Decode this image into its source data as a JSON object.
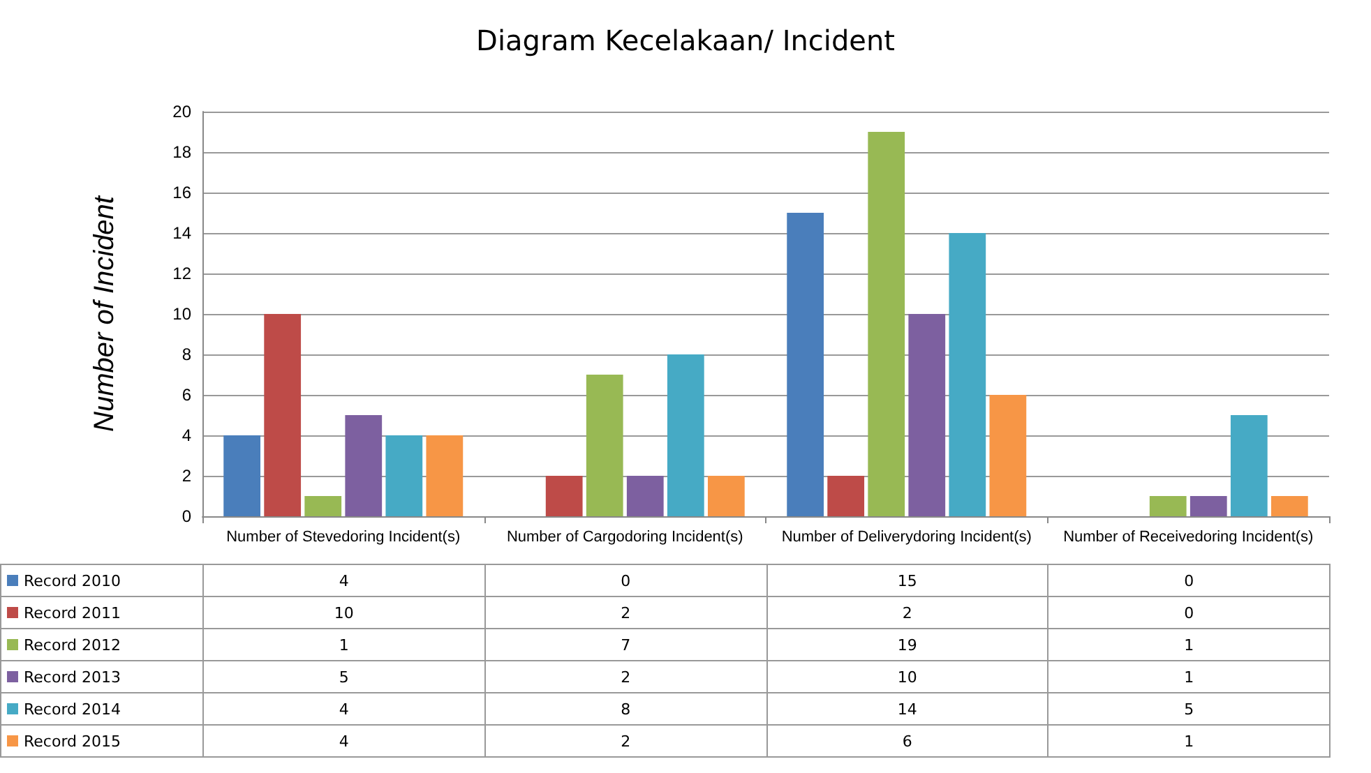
{
  "chart_data": {
    "type": "bar",
    "title": "Diagram Kecelakaan/ Incident",
    "ylabel": "Number of Incident",
    "categories": [
      "Number of Stevedoring Incident(s)",
      "Number of Cargodoring Incident(s)",
      "Number of Deliverydoring Incident(s)",
      "Number of Receivedoring Incident(s)"
    ],
    "series": [
      {
        "name": "Record 2010",
        "color": "#4a7ebb",
        "values": [
          4,
          0,
          15,
          0
        ]
      },
      {
        "name": "Record 2011",
        "color": "#be4b48",
        "values": [
          10,
          2,
          2,
          0
        ]
      },
      {
        "name": "Record 2012",
        "color": "#98b954",
        "values": [
          1,
          7,
          19,
          1
        ]
      },
      {
        "name": "Record 2013",
        "color": "#7d60a0",
        "values": [
          5,
          2,
          10,
          1
        ]
      },
      {
        "name": "Record 2014",
        "color": "#46aac5",
        "values": [
          4,
          8,
          14,
          5
        ]
      },
      {
        "name": "Record 2015",
        "color": "#f79646",
        "values": [
          4,
          2,
          6,
          1
        ]
      }
    ],
    "ylim": [
      0,
      20
    ],
    "yticks": [
      0,
      2,
      4,
      6,
      8,
      10,
      12,
      14,
      16,
      18,
      20
    ],
    "grid": "y",
    "legend": "bottom",
    "data_labels": true
  }
}
